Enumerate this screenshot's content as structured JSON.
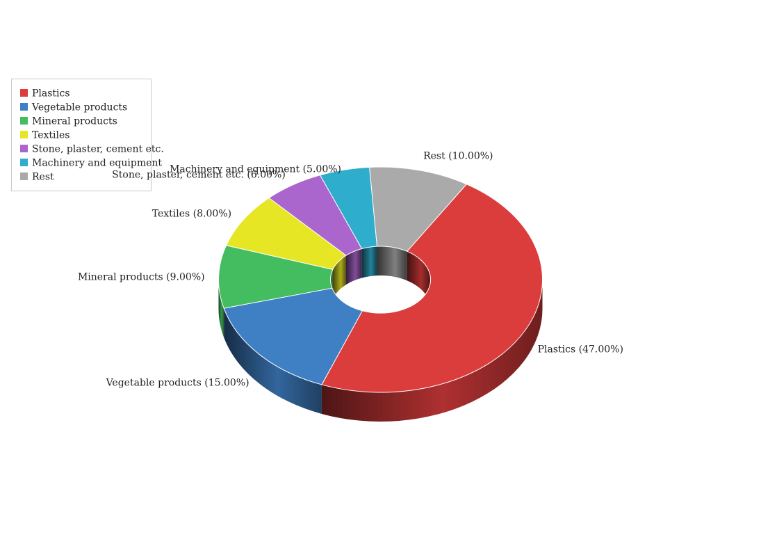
{
  "chart_data": {
    "type": "pie",
    "style": "3d-donut",
    "legend_position": "top-left",
    "categories": [
      "Plastics",
      "Vegetable products",
      "Mineral products",
      "Textiles",
      "Stone, plaster, cement etc.",
      "Machinery and equipment",
      "Rest"
    ],
    "values": [
      47,
      15,
      9,
      8,
      6,
      5,
      10
    ],
    "labels": [
      "Plastics (47.00%)",
      "Vegetable products (15.00%)",
      "Mineral products (9.00%)",
      "Textiles (8.00%)",
      "Stone, plaster, cement etc. (6.00%)",
      "Machinery and equipment (5.00%)",
      "Rest (10.00%)"
    ],
    "colors": [
      "#db3c3c",
      "#3f7fc4",
      "#43bd5f",
      "#e6e624",
      "#aa66cc",
      "#2fadcc",
      "#aaaaaa"
    ]
  }
}
